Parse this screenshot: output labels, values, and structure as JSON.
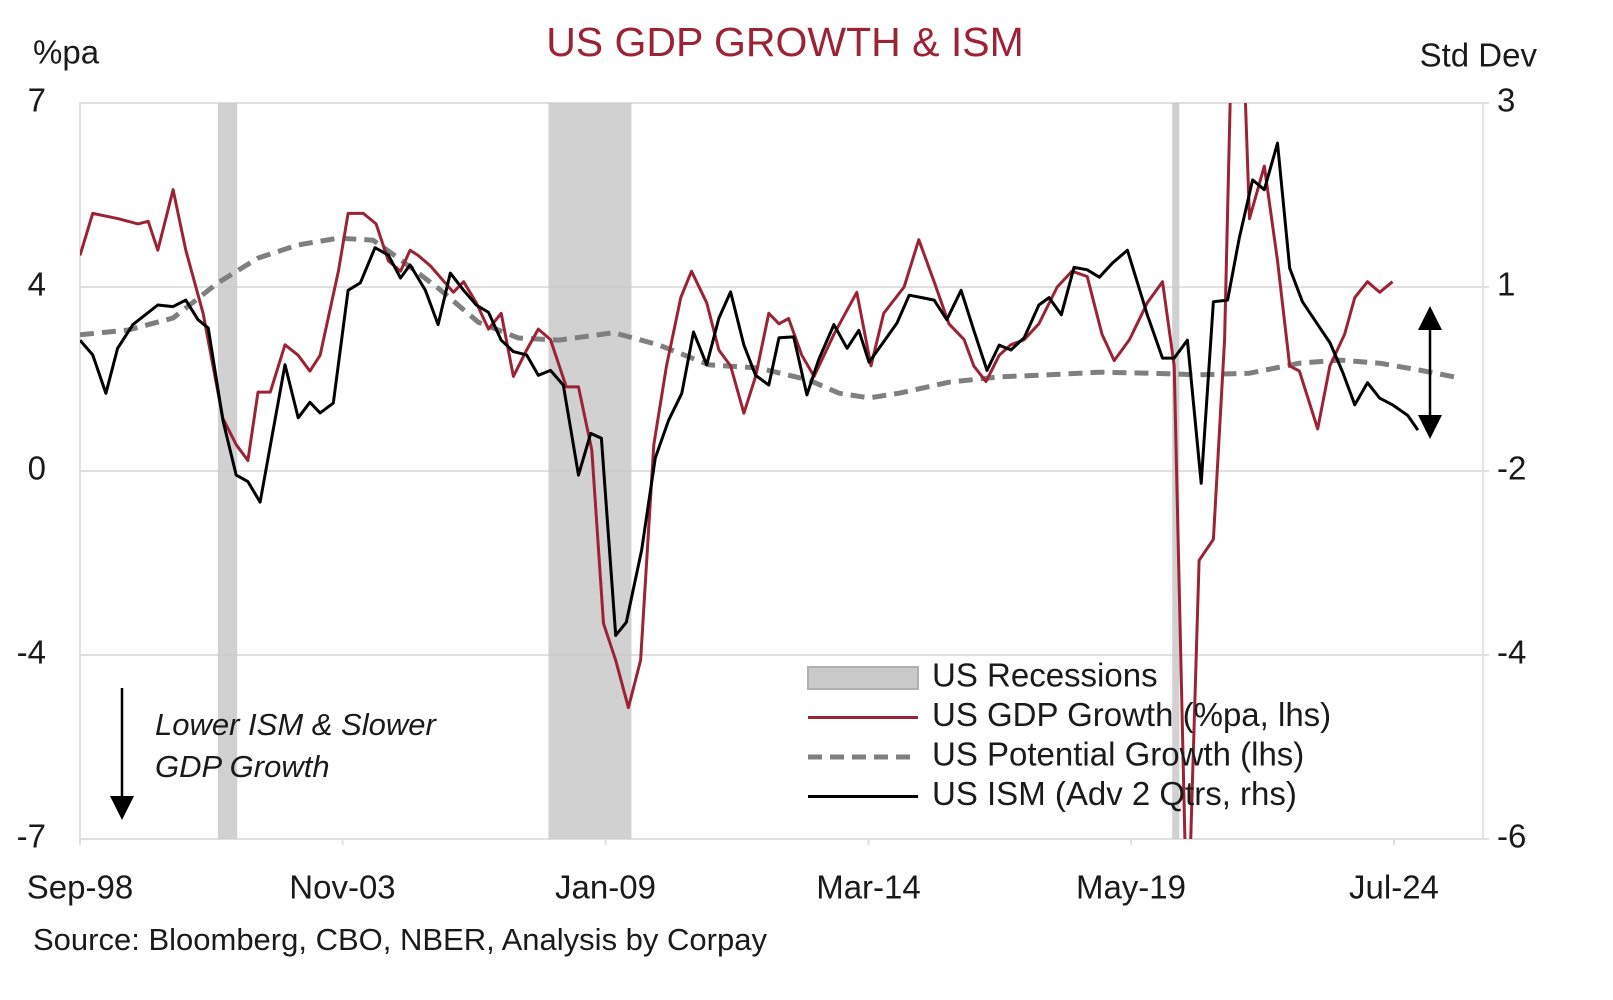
{
  "chart_data": {
    "type": "line",
    "title": "US GDP GROWTH & ISM",
    "ylabel": "%pa",
    "y2label": "Std Dev",
    "source": "Source: Bloomberg, CBO, NBER, Analysis by Corpay",
    "annotation": [
      "Lower ISM & Slower",
      "GDP Growth"
    ],
    "legend": "lower right",
    "grid": true,
    "xlim": [
      1998.67,
      2026.25
    ],
    "xticks": [
      {
        "value": 1998.67,
        "label": "Sep-98"
      },
      {
        "value": 2003.83,
        "label": "Nov-03"
      },
      {
        "value": 2009.0,
        "label": "Jan-09"
      },
      {
        "value": 2014.17,
        "label": "Mar-14"
      },
      {
        "value": 2019.33,
        "label": "May-19"
      },
      {
        "value": 2024.5,
        "label": "Jul-24"
      }
    ],
    "ylim": [
      -7,
      7
    ],
    "yticks": [
      {
        "value": -7,
        "label": "-7"
      },
      {
        "value": -3.5,
        "label": "-4"
      },
      0,
      {
        "value": 3.5,
        "label": "4"
      },
      7
    ],
    "y2lim": [
      -6,
      3
    ],
    "y2ticks": [
      {
        "value": -6,
        "label": "-6"
      },
      {
        "value": -3.75,
        "label": "-4"
      },
      {
        "value": -1.5,
        "label": "-2"
      },
      {
        "value": 0.75,
        "label": "1"
      },
      3
    ],
    "recessions": {
      "name": "US Recessions",
      "color": "#c9c9c9",
      "periods": [
        [
          2001.38,
          2001.76
        ],
        [
          2007.88,
          2009.51
        ],
        [
          2020.14,
          2020.28
        ]
      ]
    },
    "series": [
      {
        "name": "US GDP Growth (%pa, lhs)",
        "color": "#9b2335",
        "axis": "y",
        "x": [
          1998.67,
          1998.92,
          1999.42,
          1999.81,
          2000.01,
          2000.2,
          2000.5,
          2000.75,
          2001.09,
          2001.48,
          2001.74,
          2001.97,
          2002.17,
          2002.41,
          2002.7,
          2002.96,
          2003.19,
          2003.39,
          2003.75,
          2003.94,
          2004.24,
          2004.49,
          2004.73,
          2004.97,
          2005.16,
          2005.32,
          2005.56,
          2006.01,
          2006.21,
          2006.46,
          2006.7,
          2006.95,
          2007.19,
          2007.45,
          2007.68,
          2007.92,
          2008.23,
          2008.47,
          2008.73,
          2008.96,
          2009.2,
          2009.45,
          2009.69,
          2009.95,
          2010.2,
          2010.48,
          2010.69,
          2010.99,
          2011.23,
          2011.46,
          2011.72,
          2011.95,
          2012.21,
          2012.41,
          2012.6,
          2012.86,
          2013.1,
          2013.49,
          2013.94,
          2014.22,
          2014.47,
          2014.87,
          2015.16,
          2015.46,
          2015.75,
          2016.05,
          2016.24,
          2016.48,
          2016.74,
          2016.97,
          2017.23,
          2017.52,
          2017.88,
          2018.17,
          2018.47,
          2018.76,
          2019.0,
          2019.3,
          2019.65,
          2019.95,
          2020.18,
          2020.44,
          2020.67,
          2020.95,
          2021.17,
          2021.4,
          2021.66,
          2021.95,
          2022.21,
          2022.45,
          2022.64,
          2023.0,
          2023.24,
          2023.53,
          2023.73,
          2023.98,
          2024.22,
          2024.47
        ],
        "values": [
          4.1,
          4.9,
          4.8,
          4.7,
          4.75,
          4.2,
          5.35,
          4.2,
          3.0,
          1.0,
          0.5,
          0.2,
          1.5,
          1.5,
          2.4,
          2.2,
          1.9,
          2.2,
          3.8,
          4.9,
          4.9,
          4.7,
          4.0,
          3.8,
          4.2,
          4.1,
          3.9,
          3.4,
          3.6,
          3.2,
          2.7,
          3.0,
          1.8,
          2.3,
          2.7,
          2.5,
          1.6,
          1.6,
          0.4,
          -2.9,
          -3.6,
          -4.5,
          -3.6,
          0.5,
          2.0,
          3.3,
          3.8,
          3.2,
          2.3,
          2.0,
          1.1,
          1.8,
          3.0,
          2.8,
          2.9,
          2.2,
          1.8,
          2.6,
          3.4,
          2.0,
          3.0,
          3.5,
          4.4,
          3.6,
          2.8,
          2.5,
          2.0,
          1.7,
          2.2,
          2.4,
          2.5,
          2.8,
          3.5,
          3.8,
          3.7,
          2.6,
          2.1,
          2.5,
          3.2,
          3.6,
          2.0,
          -9.1,
          -1.7,
          -1.3,
          2.5,
          12.0,
          4.8,
          5.8,
          4.0,
          2.0,
          1.9,
          0.8,
          2.0,
          2.6,
          3.3,
          3.6,
          3.4,
          3.6
        ]
      },
      {
        "name": "US Potential Growth (lhs)",
        "color": "#7f7f7f",
        "axis": "y",
        "dashed": true,
        "x": [
          1998.67,
          1999.61,
          2000.5,
          2001.38,
          2002.17,
          2002.96,
          2003.75,
          2004.43,
          2004.93,
          2005.71,
          2006.5,
          2007.29,
          2008.08,
          2009.16,
          2010.04,
          2011.03,
          2012.01,
          2013.0,
          2013.59,
          2014.18,
          2014.77,
          2015.75,
          2016.74,
          2017.72,
          2018.71,
          2019.69,
          2020.67,
          2021.66,
          2022.64,
          2023.43,
          2024.22,
          2025.0,
          2025.79
        ],
        "values": [
          2.59,
          2.68,
          2.91,
          3.58,
          4.05,
          4.3,
          4.43,
          4.39,
          4.05,
          3.48,
          2.83,
          2.53,
          2.49,
          2.63,
          2.4,
          2.02,
          1.96,
          1.73,
          1.48,
          1.39,
          1.48,
          1.69,
          1.79,
          1.83,
          1.88,
          1.86,
          1.83,
          1.86,
          2.05,
          2.11,
          2.05,
          1.92,
          1.77
        ]
      },
      {
        "name": "US ISM (Adv 2 Qtrs, rhs)",
        "color": "#000000",
        "axis": "y2",
        "x": [
          1998.67,
          1998.92,
          1999.18,
          1999.41,
          1999.71,
          2000.2,
          2000.5,
          2000.75,
          2000.99,
          2001.19,
          2001.48,
          2001.74,
          2001.97,
          2002.21,
          2002.7,
          2002.96,
          2003.19,
          2003.39,
          2003.65,
          2003.94,
          2004.18,
          2004.47,
          2004.73,
          2004.97,
          2005.16,
          2005.46,
          2005.71,
          2005.95,
          2006.21,
          2006.46,
          2006.7,
          2006.95,
          2007.19,
          2007.45,
          2007.68,
          2007.92,
          2008.17,
          2008.47,
          2008.71,
          2008.92,
          2009.2,
          2009.41,
          2009.71,
          2009.98,
          2010.24,
          2010.5,
          2010.73,
          2010.99,
          2011.23,
          2011.46,
          2011.72,
          2011.95,
          2012.21,
          2012.41,
          2012.7,
          2012.96,
          2013.19,
          2013.49,
          2013.75,
          2013.98,
          2014.18,
          2014.47,
          2014.73,
          2014.97,
          2015.22,
          2015.46,
          2015.71,
          2015.99,
          2016.24,
          2016.5,
          2016.74,
          2016.97,
          2017.23,
          2017.52,
          2017.72,
          2017.96,
          2018.21,
          2018.47,
          2018.71,
          2018.96,
          2019.26,
          2019.65,
          2019.95,
          2020.18,
          2020.44,
          2020.71,
          2020.95,
          2021.23,
          2021.46,
          2021.72,
          2021.95,
          2022.21,
          2022.45,
          2022.7,
          2023.0,
          2023.24,
          2023.49,
          2023.73,
          2023.98,
          2024.22,
          2024.47,
          2024.77,
          2024.97
        ],
        "values": [
          0.1,
          -0.08,
          -0.55,
          0.0,
          0.29,
          0.53,
          0.51,
          0.59,
          0.35,
          0.25,
          -0.88,
          -1.55,
          -1.63,
          -1.88,
          -0.2,
          -0.85,
          -0.66,
          -0.79,
          -0.67,
          0.71,
          0.8,
          1.23,
          1.14,
          0.86,
          1.02,
          0.71,
          0.29,
          0.92,
          0.71,
          0.53,
          0.44,
          0.1,
          -0.04,
          -0.08,
          -0.33,
          -0.27,
          -0.45,
          -1.55,
          -1.04,
          -1.1,
          -3.51,
          -3.35,
          -2.47,
          -1.34,
          -0.88,
          -0.55,
          0.2,
          -0.2,
          0.37,
          0.69,
          0.04,
          -0.33,
          -0.45,
          0.13,
          0.14,
          -0.57,
          -0.14,
          0.29,
          0.0,
          0.22,
          -0.17,
          0.08,
          0.31,
          0.65,
          0.62,
          0.59,
          0.35,
          0.71,
          0.22,
          -0.27,
          0.04,
          -0.02,
          0.13,
          0.53,
          0.62,
          0.41,
          0.99,
          0.96,
          0.87,
          1.04,
          1.2,
          0.41,
          -0.12,
          -0.12,
          0.1,
          -1.65,
          0.57,
          0.59,
          1.35,
          2.06,
          1.94,
          2.51,
          0.98,
          0.57,
          0.29,
          0.07,
          -0.29,
          -0.69,
          -0.42,
          -0.61,
          -0.69,
          -0.82,
          -1.0
        ]
      }
    ]
  }
}
